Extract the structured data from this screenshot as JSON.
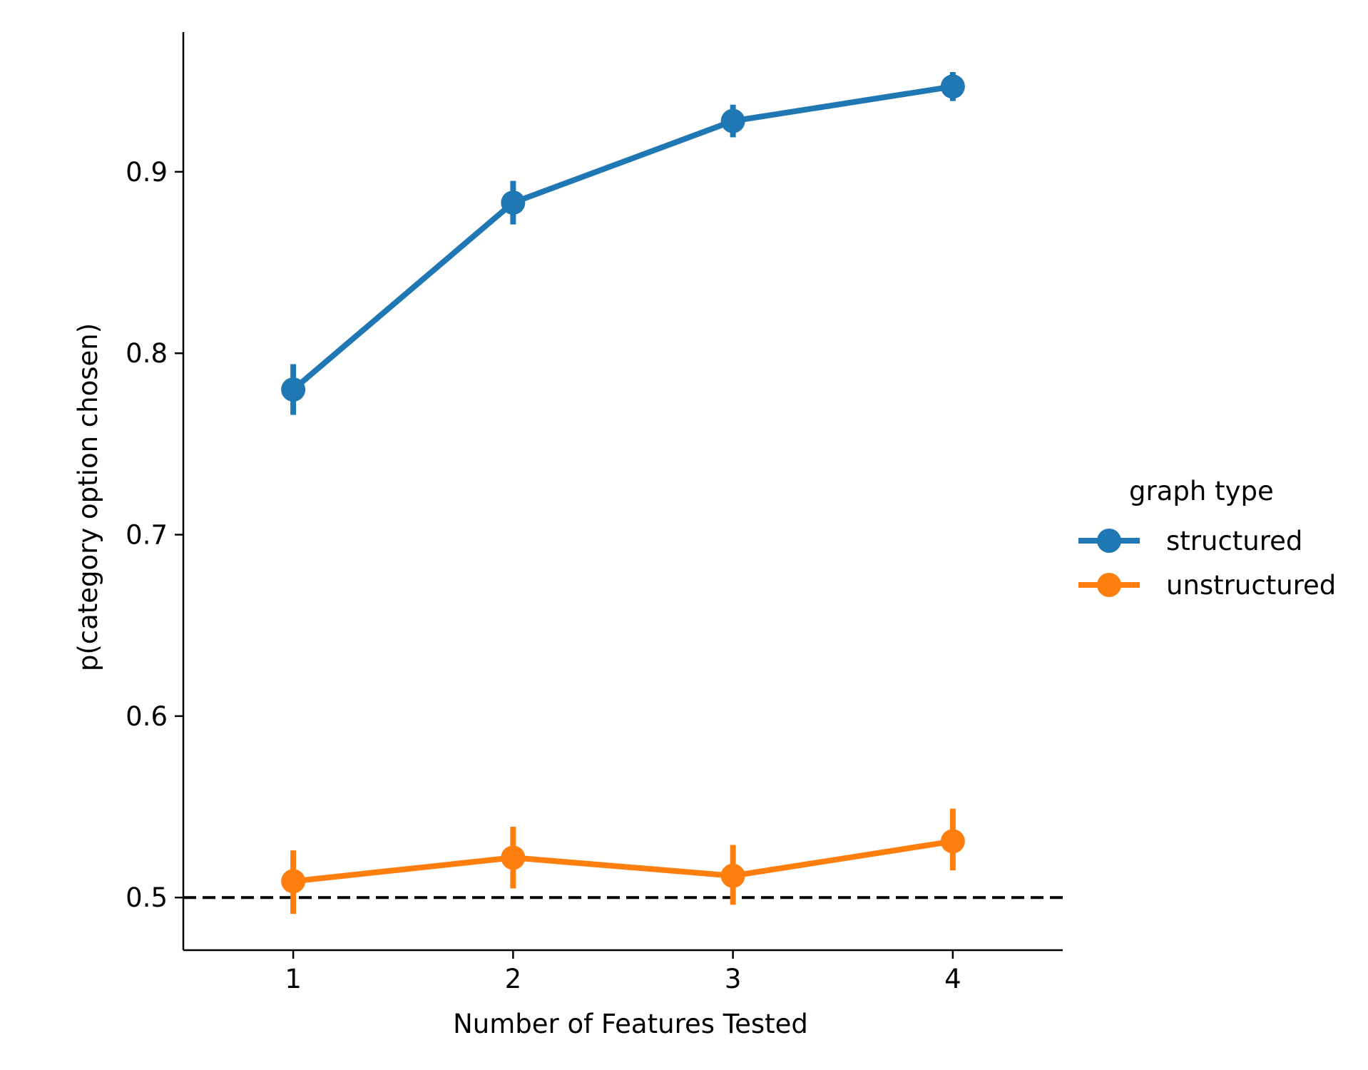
{
  "chart_data": {
    "type": "line",
    "title": "",
    "xlabel": "Number of Features Tested",
    "ylabel": "p(category option chosen)",
    "x": [
      1,
      2,
      3,
      4
    ],
    "xticks": [
      "1",
      "2",
      "3",
      "4"
    ],
    "xlim": [
      0.5,
      4.5
    ],
    "ylim": [
      0.471,
      0.977
    ],
    "yticks": [
      "0.5",
      "0.6",
      "0.7",
      "0.8",
      "0.9"
    ],
    "grid": false,
    "reference_line": {
      "y": 0.5,
      "style": "dashed",
      "color": "#000000"
    },
    "legend": {
      "title": "graph type",
      "placement": "right"
    },
    "series": [
      {
        "name": "structured",
        "color": "#1f77b4",
        "values": [
          0.78,
          0.883,
          0.928,
          0.947
        ],
        "error_low": [
          0.766,
          0.871,
          0.919,
          0.939
        ],
        "error_high": [
          0.794,
          0.895,
          0.937,
          0.955
        ]
      },
      {
        "name": "unstructured",
        "color": "#ff7f0e",
        "values": [
          0.509,
          0.522,
          0.512,
          0.531
        ],
        "error_low": [
          0.491,
          0.505,
          0.496,
          0.515
        ],
        "error_high": [
          0.526,
          0.539,
          0.529,
          0.549
        ]
      }
    ]
  }
}
